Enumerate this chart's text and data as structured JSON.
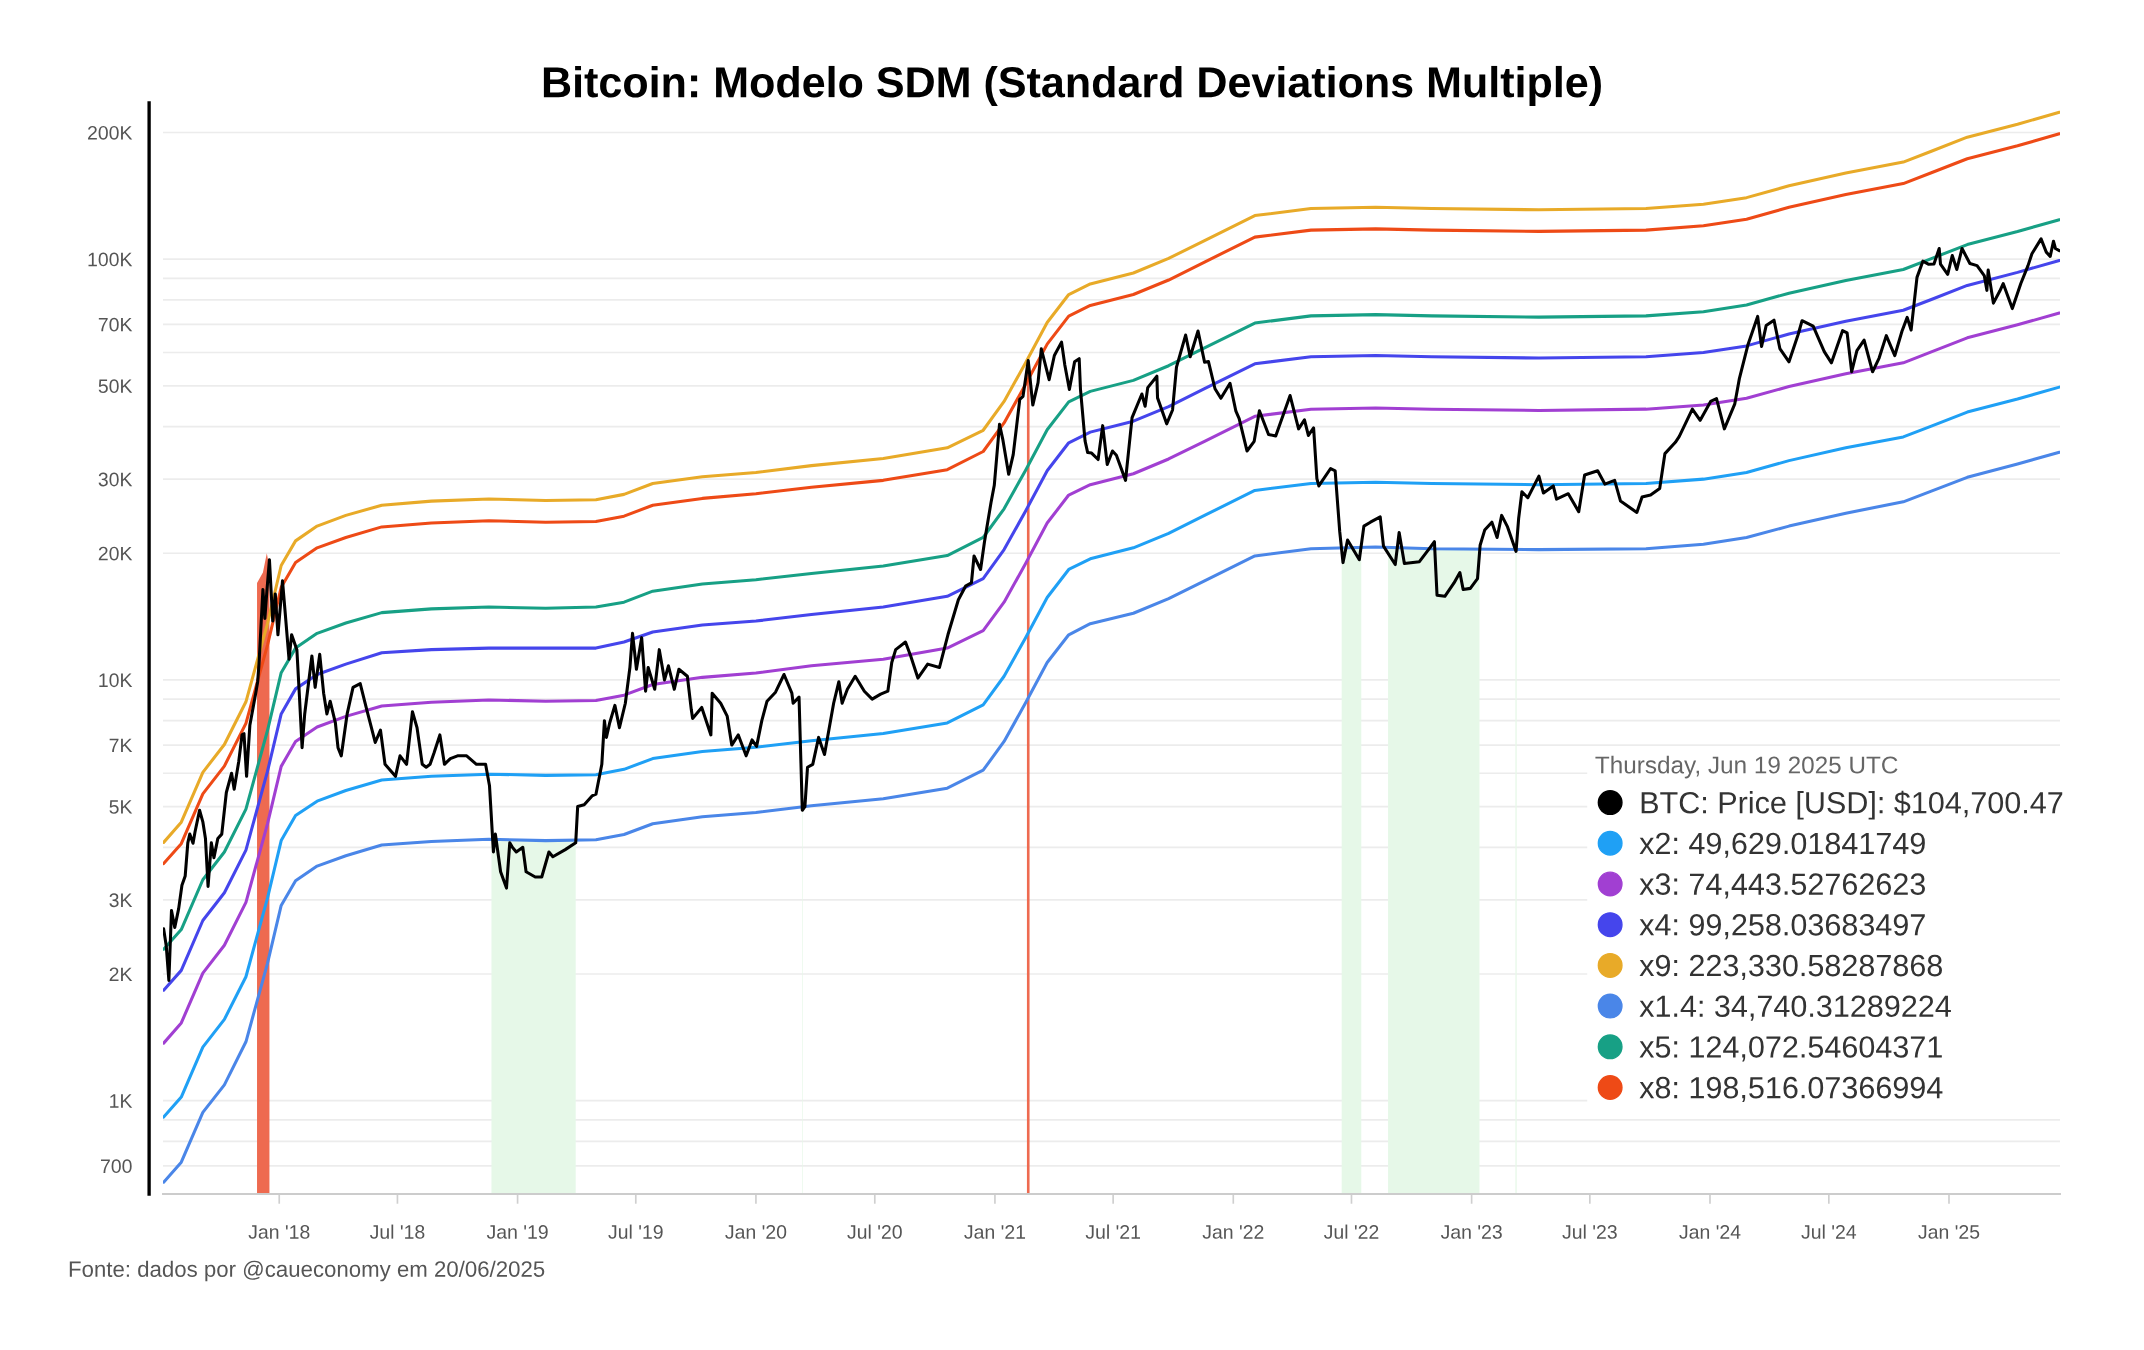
{
  "chart_data": {
    "type": "line",
    "title": "Bitcoin: Modelo SDM (Standard Deviations Multiple)",
    "annotations": [
      "Fonte: dados por @caueconomy em 20/06/2025"
    ],
    "legend": "bottom right",
    "legend_title": "Thursday, Jun 19 2025 UTC",
    "log": "y",
    "grid": "y",
    "xlim": [
      "2017-07-07",
      "2025-06-20"
    ],
    "ylim": [
      600,
      235000
    ],
    "xticks": [
      {
        "value": "2018-01-01",
        "label": "Jan '18"
      },
      {
        "value": "2018-07-01",
        "label": "Jul '18"
      },
      {
        "value": "2019-01-01",
        "label": "Jan '19"
      },
      {
        "value": "2019-07-01",
        "label": "Jul '19"
      },
      {
        "value": "2020-01-01",
        "label": "Jan '20"
      },
      {
        "value": "2020-07-01",
        "label": "Jul '20"
      },
      {
        "value": "2021-01-01",
        "label": "Jan '21"
      },
      {
        "value": "2021-07-01",
        "label": "Jul '21"
      },
      {
        "value": "2022-01-01",
        "label": "Jan '22"
      },
      {
        "value": "2022-07-01",
        "label": "Jul '22"
      },
      {
        "value": "2023-01-01",
        "label": "Jan '23"
      },
      {
        "value": "2023-07-01",
        "label": "Jul '23"
      },
      {
        "value": "2024-01-01",
        "label": "Jan '24"
      },
      {
        "value": "2024-07-01",
        "label": "Jul '24"
      },
      {
        "value": "2025-01-01",
        "label": "Jan '25"
      }
    ],
    "yticks": [
      700,
      {
        "value": 800,
        "label": null
      },
      {
        "value": 900,
        "label": null
      },
      {
        "value": 1000,
        "label": "1K"
      },
      {
        "value": 2000,
        "label": "2K"
      },
      {
        "value": 3000,
        "label": "3K"
      },
      {
        "value": 4000,
        "label": null
      },
      {
        "value": 5000,
        "label": "5K"
      },
      {
        "value": 6000,
        "label": null
      },
      {
        "value": 7000,
        "label": "7K"
      },
      {
        "value": 8000,
        "label": null
      },
      {
        "value": 9000,
        "label": null
      },
      {
        "value": 10000,
        "label": "10K"
      },
      {
        "value": 20000,
        "label": "20K"
      },
      {
        "value": 30000,
        "label": "30K"
      },
      {
        "value": 40000,
        "label": null
      },
      {
        "value": 50000,
        "label": "50K"
      },
      {
        "value": 60000,
        "label": null
      },
      {
        "value": 70000,
        "label": "70K"
      },
      {
        "value": 80000,
        "label": null
      },
      {
        "value": 90000,
        "label": null
      },
      {
        "value": 100000,
        "label": "100K"
      },
      {
        "value": 200000,
        "label": "200K"
      }
    ],
    "x": [
      "2017-07-08",
      "2017-08-04",
      "2017-09-06",
      "2017-10-09",
      "2017-11-11",
      "2017-12-14",
      "2018-01-04",
      "2018-01-26",
      "2018-02-28",
      "2018-04-13",
      "2018-06-07",
      "2018-08-22",
      "2018-11-18",
      "2019-02-13",
      "2019-05-01",
      "2019-06-13",
      "2019-07-27",
      "2019-10-11",
      "2020-01-01",
      "2020-03-26",
      "2020-07-14",
      "2020-10-20",
      "2020-12-14",
      "2021-01-15",
      "2021-02-17",
      "2021-03-22",
      "2021-04-24",
      "2021-05-27",
      "2021-08-01",
      "2021-09-24",
      "2021-11-18",
      "2022-02-03",
      "2022-04-30",
      "2022-08-07",
      "2022-11-01",
      "2023-04-14",
      "2023-09-25",
      "2023-12-22",
      "2024-02-26",
      "2024-05-01",
      "2024-07-27",
      "2024-10-23",
      "2024-12-05",
      "2025-01-29",
      "2025-04-16",
      "2025-06-19"
    ],
    "series": [
      {
        "type": "area",
        "color": "#ee6a50",
        "x": [
          "2017-11-28",
          "2017-12-07",
          "2017-12-13",
          "2017-12-17"
        ],
        "values": [
          17000,
          18000,
          20000,
          18500
        ]
      },
      {
        "type": "area",
        "color": "#ee6a50",
        "x": [
          "2021-02-19",
          "2021-02-23"
        ],
        "values": [
          57000,
          57000
        ]
      },
      {
        "type": "area",
        "color": "#e6f8e8",
        "x": [
          "2018-11-22",
          "2018-12-15",
          "2019-01-15",
          "2019-02-13",
          "2019-03-31"
        ],
        "values": [
          4170,
          4170,
          4160,
          4150,
          4160
        ]
      },
      {
        "type": "area",
        "color": "#e6f8e8",
        "x": [
          "2020-03-12",
          "2020-03-13"
        ],
        "values": [
          4980,
          4980
        ]
      },
      {
        "type": "area",
        "color": "#e6f8e8",
        "x": [
          "2022-06-16",
          "2022-07-16"
        ],
        "values": [
          20600,
          20600
        ]
      },
      {
        "type": "area",
        "color": "#e6f8e8",
        "x": [
          "2022-08-26",
          "2022-11-01",
          "2023-01-13"
        ],
        "values": [
          20600,
          20500,
          20500
        ]
      },
      {
        "type": "area",
        "color": "#e6f8e8",
        "x": [
          "2023-03-09",
          "2023-03-11"
        ],
        "values": [
          20400,
          20400
        ]
      },
      {
        "name": "BTC: Price [USD]: $104,700.47",
        "color": "#000000",
        "x": [
          "2017-07-08",
          "2017-07-12",
          "2017-07-16",
          "2017-07-20",
          "2017-07-25",
          "2017-07-31",
          "2017-08-05",
          "2017-08-10",
          "2017-08-14",
          "2017-08-17",
          "2017-08-22",
          "2017-08-25",
          "2017-09-01",
          "2017-09-06",
          "2017-09-10",
          "2017-09-14",
          "2017-09-19",
          "2017-09-23",
          "2017-09-29",
          "2017-10-05",
          "2017-10-12",
          "2017-10-20",
          "2017-10-24",
          "2017-10-31",
          "2017-11-05",
          "2017-11-08",
          "2017-11-12",
          "2017-11-17",
          "2017-11-26",
          "2017-11-29",
          "2017-12-01",
          "2017-12-07",
          "2017-12-10",
          "2017-12-13",
          "2017-12-17",
          "2017-12-22",
          "2017-12-26",
          "2017-12-30",
          "2018-01-06",
          "2018-01-10",
          "2018-01-16",
          "2018-01-20",
          "2018-01-28",
          "2018-02-01",
          "2018-02-05",
          "2018-02-09",
          "2018-02-20",
          "2018-02-25",
          "2018-03-04",
          "2018-03-10",
          "2018-03-15",
          "2018-03-20",
          "2018-03-28",
          "2018-04-01",
          "2018-04-06",
          "2018-04-15",
          "2018-04-24",
          "2018-05-05",
          "2018-05-15",
          "2018-05-28",
          "2018-06-05",
          "2018-06-12",
          "2018-06-28",
          "2018-07-05",
          "2018-07-15",
          "2018-07-24",
          "2018-07-31",
          "2018-08-08",
          "2018-08-14",
          "2018-08-20",
          "2018-08-26",
          "2018-09-04",
          "2018-09-11",
          "2018-09-20",
          "2018-10-01",
          "2018-10-15",
          "2018-10-30",
          "2018-11-13",
          "2018-11-19",
          "2018-11-25",
          "2018-11-28",
          "2018-12-06",
          "2018-12-15",
          "2018-12-20",
          "2018-12-24",
          "2018-12-30",
          "2019-01-09",
          "2019-01-14",
          "2019-01-28",
          "2019-02-07",
          "2019-02-18",
          "2019-02-24",
          "2019-03-15",
          "2019-03-31",
          "2019-04-03",
          "2019-04-13",
          "2019-04-25",
          "2019-05-01",
          "2019-05-10",
          "2019-05-14",
          "2019-05-17",
          "2019-05-22",
          "2019-05-30",
          "2019-06-06",
          "2019-06-15",
          "2019-06-22",
          "2019-06-26",
          "2019-06-28",
          "2019-07-02",
          "2019-07-10",
          "2019-07-16",
          "2019-07-20",
          "2019-07-30",
          "2019-08-06",
          "2019-08-14",
          "2019-08-20",
          "2019-08-29",
          "2019-09-05",
          "2019-09-18",
          "2019-09-24",
          "2019-09-26",
          "2019-10-10",
          "2019-10-24",
          "2019-10-26",
          "2019-11-08",
          "2019-11-18",
          "2019-11-25",
          "2019-12-05",
          "2019-12-17",
          "2019-12-26",
          "2020-01-02",
          "2020-01-10",
          "2020-01-18",
          "2020-01-31",
          "2020-02-13",
          "2020-02-25",
          "2020-02-27",
          "2020-03-07",
          "2020-03-12",
          "2020-03-16",
          "2020-03-20",
          "2020-03-28",
          "2020-04-06",
          "2020-04-15",
          "2020-04-29",
          "2020-05-07",
          "2020-05-12",
          "2020-05-20",
          "2020-06-01",
          "2020-06-15",
          "2020-06-27",
          "2020-07-10",
          "2020-07-21",
          "2020-07-27",
          "2020-08-02",
          "2020-08-17",
          "2020-08-25",
          "2020-09-05",
          "2020-09-20",
          "2020-10-08",
          "2020-10-21",
          "2020-11-06",
          "2020-11-17",
          "2020-11-26",
          "2020-11-30",
          "2020-12-10",
          "2020-12-16",
          "2020-12-26",
          "2020-12-31",
          "2021-01-08",
          "2021-01-13",
          "2021-01-22",
          "2021-01-29",
          "2021-02-08",
          "2021-02-13",
          "2021-02-21",
          "2021-02-28",
          "2021-03-08",
          "2021-03-13",
          "2021-03-25",
          "2021-04-02",
          "2021-04-13",
          "2021-04-18",
          "2021-04-25",
          "2021-05-03",
          "2021-05-10",
          "2021-05-12",
          "2021-05-19",
          "2021-05-23",
          "2021-05-29",
          "2021-06-08",
          "2021-06-15",
          "2021-06-22",
          "2021-06-30",
          "2021-07-06",
          "2021-07-20",
          "2021-07-30",
          "2021-08-14",
          "2021-08-19",
          "2021-08-23",
          "2021-09-06",
          "2021-09-07",
          "2021-09-21",
          "2021-09-30",
          "2021-10-06",
          "2021-10-20",
          "2021-10-27",
          "2021-11-08",
          "2021-11-18",
          "2021-11-24",
          "2021-12-04",
          "2021-12-13",
          "2021-12-27",
          "2022-01-05",
          "2022-01-10",
          "2022-01-22",
          "2022-02-02",
          "2022-02-10",
          "2022-02-24",
          "2022-03-07",
          "2022-03-29",
          "2022-04-11",
          "2022-04-20",
          "2022-04-26",
          "2022-05-04",
          "2022-05-09",
          "2022-05-12",
          "2022-05-30",
          "2022-06-06",
          "2022-06-13",
          "2022-06-18",
          "2022-06-25",
          "2022-07-13",
          "2022-07-20",
          "2022-07-30",
          "2022-08-14",
          "2022-08-19",
          "2022-09-06",
          "2022-09-12",
          "2022-09-20",
          "2022-10-13",
          "2022-10-29",
          "2022-11-05",
          "2022-11-09",
          "2022-11-21",
          "2022-12-05",
          "2022-12-14",
          "2022-12-19",
          "2022-12-30",
          "2023-01-10",
          "2023-01-14",
          "2023-01-21",
          "2023-02-01",
          "2023-02-09",
          "2023-02-16",
          "2023-02-25",
          "2023-03-10",
          "2023-03-14",
          "2023-03-19",
          "2023-03-28",
          "2023-04-14",
          "2023-04-21",
          "2023-05-06",
          "2023-05-11",
          "2023-05-29",
          "2023-06-14",
          "2023-06-23",
          "2023-07-13",
          "2023-07-24",
          "2023-08-08",
          "2023-08-17",
          "2023-09-11",
          "2023-09-19",
          "2023-10-02",
          "2023-10-16",
          "2023-10-24",
          "2023-11-09",
          "2023-11-15",
          "2023-12-05",
          "2023-12-17",
          "2024-01-02",
          "2024-01-11",
          "2024-01-23",
          "2024-02-08",
          "2024-02-15",
          "2024-02-28",
          "2024-03-14",
          "2024-03-20",
          "2024-03-27",
          "2024-04-08",
          "2024-04-17",
          "2024-05-01",
          "2024-05-15",
          "2024-05-21",
          "2024-06-07",
          "2024-06-24",
          "2024-07-05",
          "2024-07-22",
          "2024-07-29",
          "2024-08-05",
          "2024-08-13",
          "2024-08-24",
          "2024-09-06",
          "2024-09-16",
          "2024-09-27",
          "2024-10-10",
          "2024-10-21",
          "2024-10-29",
          "2024-11-04",
          "2024-11-13",
          "2024-11-22",
          "2024-12-01",
          "2024-12-09",
          "2024-12-17",
          "2024-12-19",
          "2024-12-30",
          "2025-01-06",
          "2025-01-13",
          "2025-01-21",
          "2025-02-02",
          "2025-02-13",
          "2025-02-24",
          "2025-02-28",
          "2025-03-02",
          "2025-03-10",
          "2025-03-20",
          "2025-03-25",
          "2025-04-08",
          "2025-04-21",
          "2025-05-02",
          "2025-05-08",
          "2025-05-22",
          "2025-05-30",
          "2025-06-05",
          "2025-06-10",
          "2025-06-13",
          "2025-06-19"
        ],
        "values": [
          2560,
          2330,
          1930,
          2830,
          2580,
          2860,
          3250,
          3420,
          4100,
          4300,
          4090,
          4350,
          4900,
          4600,
          4200,
          3230,
          4100,
          3780,
          4200,
          4300,
          5400,
          6000,
          5500,
          6400,
          7400,
          7450,
          5900,
          7800,
          9300,
          9900,
          10900,
          16400,
          14000,
          16200,
          19300,
          13800,
          16000,
          12800,
          17200,
          14500,
          11200,
          12800,
          11800,
          9100,
          6900,
          8300,
          11400,
          9600,
          11500,
          9300,
          8300,
          8900,
          7900,
          6900,
          6600,
          8300,
          9600,
          9800,
          8500,
          7100,
          7600,
          6300,
          5900,
          6600,
          6300,
          8400,
          7700,
          6300,
          6200,
          6300,
          6700,
          7400,
          6300,
          6500,
          6600,
          6600,
          6300,
          6300,
          5600,
          3900,
          4300,
          3500,
          3200,
          4100,
          4000,
          3900,
          4000,
          3500,
          3400,
          3400,
          3900,
          3800,
          3950,
          4100,
          5000,
          5050,
          5300,
          5350,
          6300,
          8000,
          7300,
          7900,
          8700,
          7700,
          8800,
          10700,
          12900,
          12100,
          10600,
          12600,
          9400,
          10700,
          9500,
          11800,
          10000,
          10800,
          9500,
          10600,
          10200,
          8500,
          8100,
          8600,
          7400,
          9300,
          8800,
          8200,
          7000,
          7400,
          6600,
          7200,
          6950,
          8000,
          8900,
          9350,
          10300,
          9300,
          8800,
          9100,
          4900,
          5000,
          6200,
          6300,
          7300,
          6650,
          8800,
          9900,
          8800,
          9500,
          10200,
          9400,
          9000,
          9250,
          9400,
          11000,
          11800,
          12300,
          11400,
          10100,
          10900,
          10700,
          12800,
          15500,
          16700,
          17000,
          19700,
          18300,
          21300,
          26400,
          29000,
          40500,
          37300,
          30800,
          34300,
          46400,
          47200,
          57400,
          45000,
          50900,
          61200,
          51700,
          59000,
          63500,
          56000,
          49000,
          57000,
          58000,
          49000,
          37000,
          34700,
          34600,
          33400,
          40200,
          32500,
          35000,
          34200,
          29800,
          42000,
          47800,
          44700,
          49500,
          52700,
          46800,
          40600,
          43800,
          55400,
          66000,
          58600,
          67500,
          56900,
          57100,
          49200,
          46700,
          50700,
          43500,
          41800,
          35000,
          36900,
          43600,
          38300,
          38000,
          47400,
          39500,
          41500,
          38100,
          39700,
          30100,
          28900,
          31800,
          31400,
          22500,
          19000,
          21500,
          19300,
          23200,
          23700,
          24400,
          20800,
          18800,
          22400,
          18900,
          19100,
          20600,
          21300,
          15900,
          15800,
          17000,
          18000,
          16400,
          16500,
          17400,
          20900,
          22700,
          23700,
          21800,
          24600,
          23100,
          20200,
          24200,
          28000,
          27100,
          30500,
          27800,
          28900,
          26900,
          27700,
          25100,
          30700,
          31400,
          29200,
          29800,
          26600,
          25000,
          27200,
          27500,
          28500,
          34500,
          36700,
          37900,
          44000,
          41400,
          45900,
          46600,
          39500,
          45300,
          52000,
          62500,
          73100,
          62000,
          69500,
          71600,
          61300,
          57000,
          66200,
          71400,
          69300,
          60300,
          56700,
          67600,
          66800,
          54000,
          60600,
          64200,
          54000,
          58200,
          65800,
          59000,
          67400,
          72700,
          67800,
          90500,
          98900,
          97200,
          97400,
          106000,
          97300,
          92000,
          102000,
          94500,
          106000,
          97600,
          96500,
          91400,
          84300,
          94200,
          78600,
          84100,
          87500,
          76300,
          87500,
          96500,
          103000,
          111700,
          103900,
          101500,
          110300,
          106000,
          104700.47
        ]
      },
      {
        "name": "x2: 49,629.01841749",
        "color": "#1fa0f5",
        "values": [
          914,
          1020,
          1340,
          1560,
          1970,
          3030,
          4150,
          4760,
          5150,
          5460,
          5780,
          5900,
          5970,
          5930,
          5950,
          6130,
          6500,
          6760,
          6920,
          7170,
          7460,
          7900,
          8720,
          10200,
          12600,
          15700,
          18300,
          19400,
          20600,
          22300,
          24600,
          28200,
          29300,
          29500,
          29300,
          29100,
          29300,
          30000,
          31100,
          33200,
          35600,
          37800,
          40100,
          43300,
          46500,
          49629.01841749
        ]
      },
      {
        "name": "x3: 74,443.52762623",
        "color": "#a13fd2",
        "values": [
          1370,
          1530,
          2010,
          2340,
          2960,
          4550,
          6230,
          7140,
          7730,
          8190,
          8670,
          8850,
          8960,
          8900,
          8930,
          9200,
          9750,
          10140,
          10380,
          10800,
          11200,
          11900,
          13100,
          15300,
          18900,
          23600,
          27500,
          29100,
          30900,
          33500,
          36900,
          42300,
          44000,
          44300,
          44000,
          43700,
          44000,
          45000,
          46700,
          49800,
          53400,
          56700,
          60200,
          65000,
          69800,
          74443.52762623
        ]
      },
      {
        "name": "x4: 99,258.03683497",
        "color": "#4545ec",
        "values": [
          1830,
          2040,
          2680,
          3120,
          3940,
          6060,
          8300,
          9520,
          10300,
          10900,
          11600,
          11800,
          11900,
          11900,
          11900,
          12300,
          13000,
          13500,
          13800,
          14300,
          14900,
          15800,
          17400,
          20400,
          25200,
          31400,
          36600,
          38800,
          41200,
          44600,
          49200,
          56400,
          58600,
          59000,
          58600,
          58200,
          58600,
          60000,
          62200,
          66400,
          71200,
          75600,
          80200,
          86600,
          93000,
          99258.03683497
        ]
      },
      {
        "name": "x9: 223,330.58287868",
        "color": "#e8aa28",
        "values": [
          4110,
          4590,
          6030,
          7020,
          8870,
          13600,
          18700,
          21400,
          23200,
          24600,
          26000,
          26600,
          26900,
          26700,
          26800,
          27600,
          29300,
          30400,
          31100,
          32300,
          33600,
          35600,
          39200,
          45900,
          56700,
          70700,
          82400,
          87300,
          92700,
          100400,
          110700,
          126900,
          131900,
          132800,
          131900,
          131000,
          131900,
          135000,
          140000,
          149400,
          160200,
          170100,
          180500,
          194900,
          209300,
          223330.58287868
        ]
      },
      {
        "name": "x1.4: 34,740.31289224",
        "color": "#4a86e8",
        "values": [
          640,
          714,
          938,
          1090,
          1380,
          2120,
          2910,
          3330,
          3610,
          3820,
          4050,
          4130,
          4180,
          4150,
          4170,
          4290,
          4550,
          4730,
          4840,
          5020,
          5220,
          5530,
          6100,
          7140,
          8820,
          11000,
          12800,
          13600,
          14400,
          15600,
          17200,
          19700,
          20500,
          20700,
          20500,
          20400,
          20500,
          21000,
          21800,
          23200,
          24900,
          26500,
          28100,
          30300,
          32600,
          34740.31289224
        ]
      },
      {
        "name": "x5: 124,072.54604371",
        "color": "#17a085",
        "values": [
          2290,
          2550,
          3350,
          3900,
          4930,
          7580,
          10400,
          11900,
          12900,
          13650,
          14450,
          14750,
          14900,
          14800,
          14900,
          15300,
          16250,
          16900,
          17300,
          17900,
          18650,
          19750,
          21800,
          25500,
          31500,
          39300,
          45800,
          48500,
          51500,
          55800,
          61500,
          70500,
          73300,
          73800,
          73300,
          72800,
          73300,
          75000,
          77800,
          83000,
          89000,
          94500,
          100300,
          108300,
          116300,
          124072.54604371
        ]
      },
      {
        "name": "x8: 198,516.07366994",
        "color": "#ee4a16",
        "values": [
          3660,
          4080,
          5360,
          6240,
          7880,
          12100,
          16600,
          19000,
          20600,
          21800,
          23100,
          23600,
          23900,
          23700,
          23800,
          24500,
          26000,
          27000,
          27700,
          28700,
          29800,
          31600,
          34900,
          40800,
          50400,
          62800,
          73200,
          77600,
          82400,
          89200,
          98400,
          112800,
          117200,
          118000,
          117200,
          116400,
          117200,
          120000,
          124400,
          132800,
          142400,
          151200,
          160400,
          173200,
          186000,
          198516.07366994
        ]
      }
    ]
  }
}
